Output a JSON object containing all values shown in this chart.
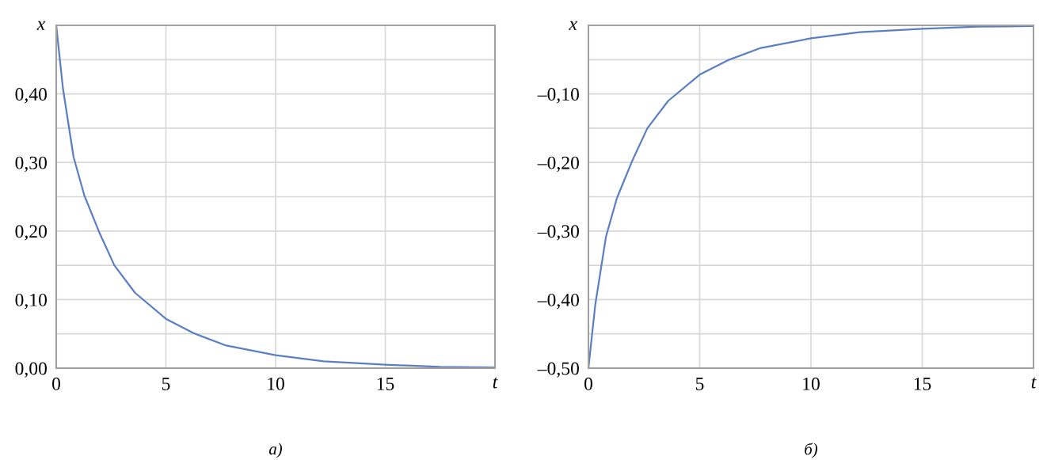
{
  "chart_data": [
    {
      "type": "line",
      "xlabel": "t",
      "ylabel": "x",
      "annotations": [
        "а)"
      ],
      "grid": true,
      "xlim": [
        0,
        20
      ],
      "xticks": [
        0,
        5,
        10,
        15,
        {
          "value": 20,
          "label": null
        }
      ],
      "ylim": [
        0,
        0.5
      ],
      "yticks": [
        {
          "value": 0,
          "label": "0,00"
        },
        {
          "value": 0.05,
          "label": null
        },
        {
          "value": 0.1,
          "label": "0,10"
        },
        {
          "value": 0.15,
          "label": null
        },
        {
          "value": 0.2,
          "label": "0,20"
        },
        {
          "value": 0.25,
          "label": null
        },
        {
          "value": 0.3,
          "label": "0,30"
        },
        {
          "value": 0.35,
          "label": null
        },
        {
          "value": 0.4,
          "label": "0,40"
        },
        {
          "value": 0.45,
          "label": null
        },
        {
          "value": 0.5,
          "label": null
        }
      ],
      "series": [
        {
          "color": "#5b7fc0",
          "x": [
            0,
            0.31,
            0.79,
            1.28,
            1.95,
            2.65,
            3.59,
            5,
            6.26,
            7.75,
            10,
            12.2,
            15,
            17.5,
            20
          ],
          "values": [
            0.5,
            0.407,
            0.308,
            0.252,
            0.199,
            0.15,
            0.11,
            0.072,
            0.051,
            0.033,
            0.019,
            0.01,
            0.005,
            0.002,
            0.001
          ]
        }
      ]
    },
    {
      "type": "line",
      "xlabel": "t",
      "ylabel": "x",
      "annotations": [
        "б)"
      ],
      "grid": true,
      "xlim": [
        0,
        20
      ],
      "xticks": [
        0,
        5,
        10,
        15,
        {
          "value": 20,
          "label": null
        }
      ],
      "ylim": [
        -0.5,
        0
      ],
      "yticks": [
        {
          "value": -0.5,
          "label": "–0,50"
        },
        {
          "value": -0.45,
          "label": null
        },
        {
          "value": -0.4,
          "label": "–0,40"
        },
        {
          "value": -0.35,
          "label": null
        },
        {
          "value": -0.3,
          "label": "–0,30"
        },
        {
          "value": -0.25,
          "label": null
        },
        {
          "value": -0.2,
          "label": "–0,20"
        },
        {
          "value": -0.15,
          "label": null
        },
        {
          "value": -0.1,
          "label": "–0,10"
        },
        {
          "value": -0.05,
          "label": null
        },
        {
          "value": 0,
          "label": null
        }
      ],
      "series": [
        {
          "color": "#5b7fc0",
          "x": [
            0,
            0.31,
            0.79,
            1.28,
            1.95,
            2.65,
            3.59,
            5,
            6.26,
            7.75,
            10,
            12.2,
            15,
            17.5,
            20
          ],
          "values": [
            -0.5,
            -0.407,
            -0.308,
            -0.252,
            -0.199,
            -0.15,
            -0.11,
            -0.072,
            -0.051,
            -0.033,
            -0.019,
            -0.01,
            -0.005,
            -0.002,
            -0.001
          ]
        }
      ]
    }
  ]
}
